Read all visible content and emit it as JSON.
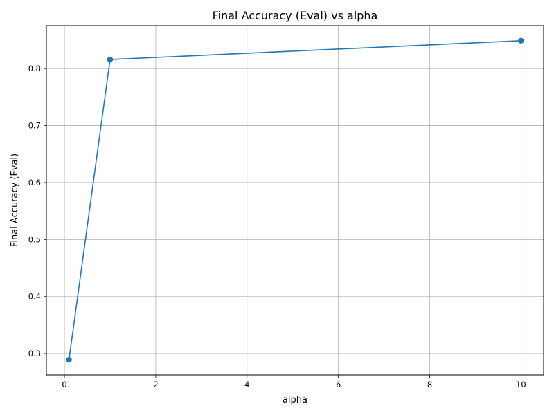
{
  "chart_data": {
    "type": "line",
    "title": "Final Accuracy (Eval) vs alpha",
    "xlabel": "alpha",
    "ylabel": "Final Accuracy (Eval)",
    "x": [
      0.1,
      1,
      10
    ],
    "series": [
      {
        "values": [
          0.289,
          0.816,
          0.849
        ]
      }
    ],
    "xlim": [
      -0.395,
      10.495
    ],
    "ylim": [
      0.2625,
      0.8755
    ],
    "xticks": [
      0,
      2,
      4,
      6,
      8,
      10
    ],
    "xtick_labels": [
      "0",
      "2",
      "4",
      "6",
      "8",
      "10"
    ],
    "yticks": [
      0.3,
      0.4,
      0.5,
      0.6,
      0.7,
      0.8
    ],
    "ytick_labels": [
      "0.3",
      "0.4",
      "0.5",
      "0.6",
      "0.7",
      "0.8"
    ],
    "grid": true,
    "markers": true,
    "line_color": "#1f77b4",
    "grid_color": "#b0b0b0"
  }
}
